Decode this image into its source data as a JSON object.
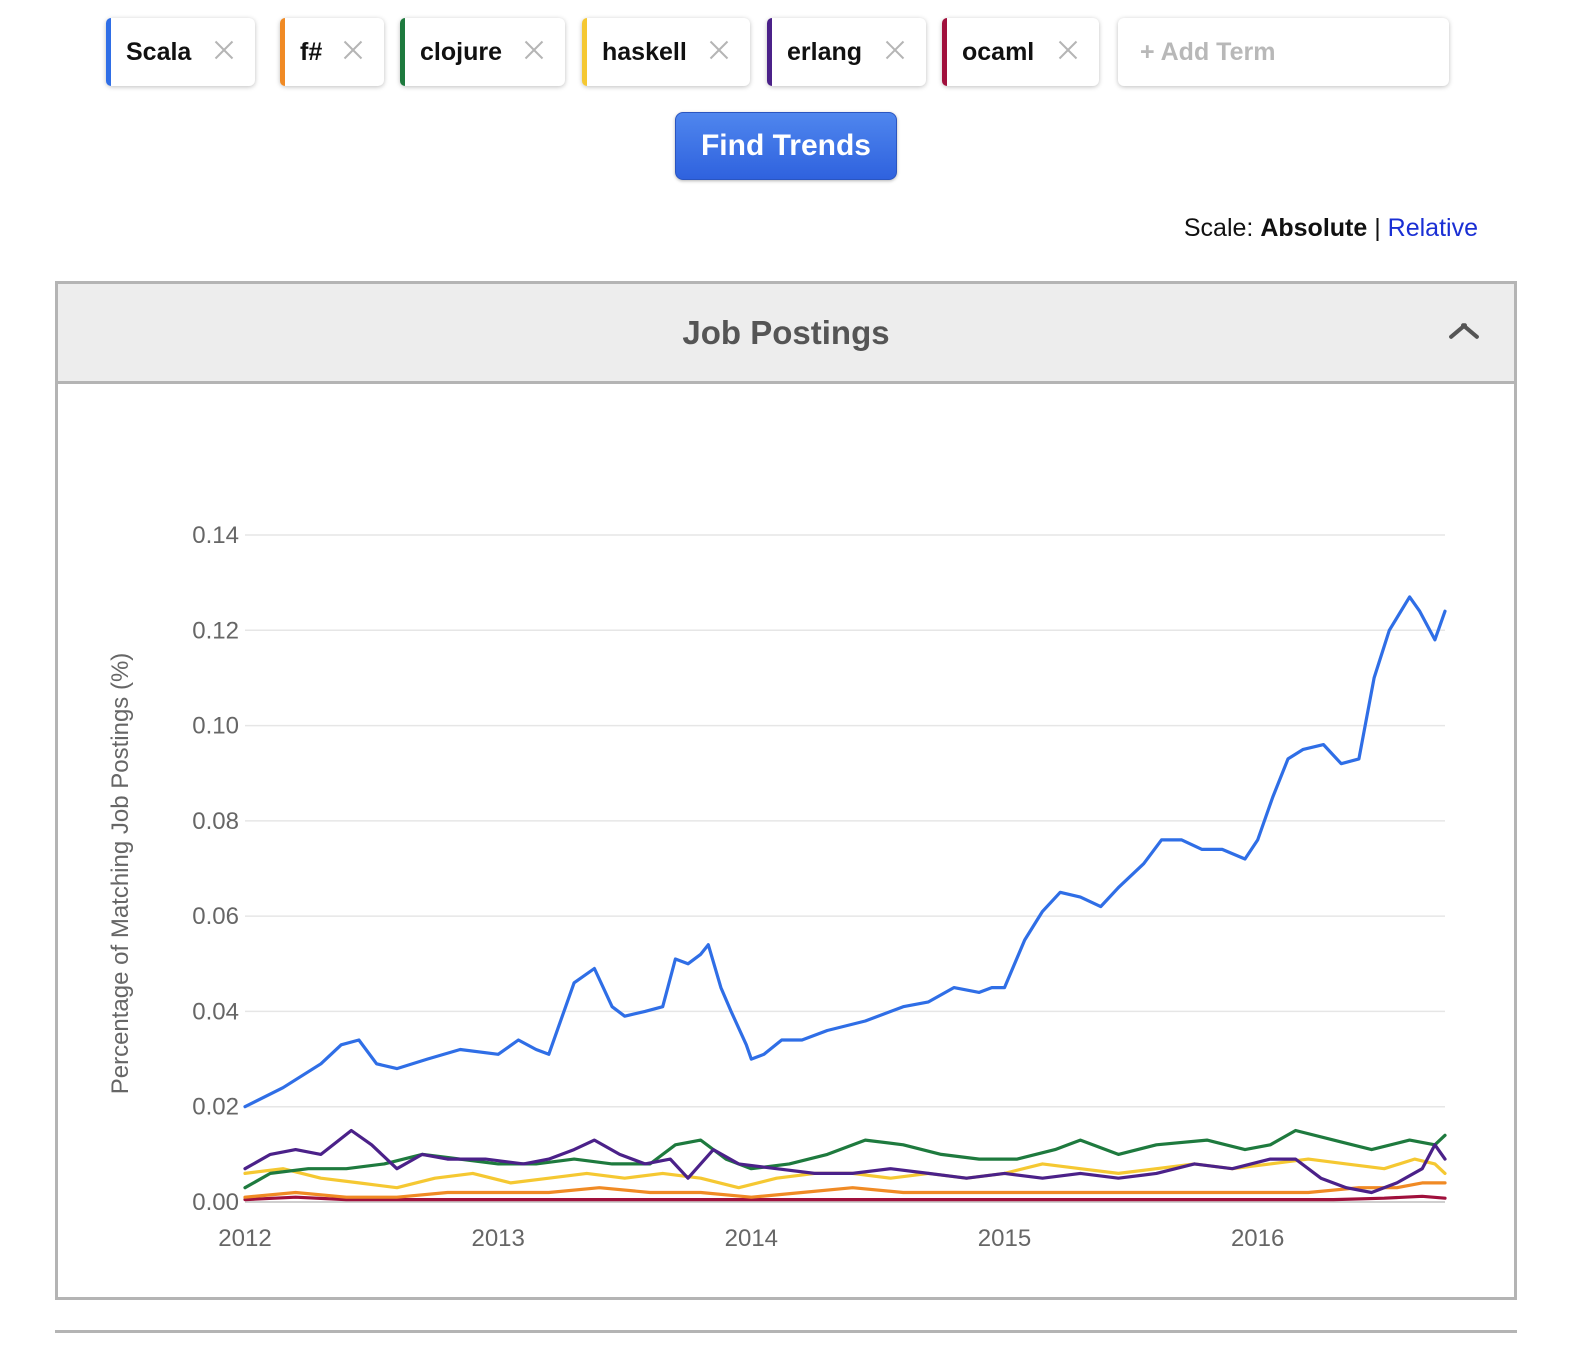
{
  "terms": [
    {
      "label": "Scala",
      "color": "#2f6ee6"
    },
    {
      "label": "f#",
      "color": "#f08a24"
    },
    {
      "label": "clojure",
      "color": "#1e7a3e"
    },
    {
      "label": "haskell",
      "color": "#f5c832"
    },
    {
      "label": "erlang",
      "color": "#4b2189"
    },
    {
      "label": "ocaml",
      "color": "#a0103c"
    }
  ],
  "add_term": {
    "placeholder": "+ Add Term"
  },
  "find_button": {
    "label": "Find Trends"
  },
  "scale": {
    "prefix": "Scale:",
    "absolute": "Absolute",
    "separator": "|",
    "relative": "Relative"
  },
  "panel": {
    "title": "Job Postings"
  },
  "chart_data": {
    "type": "line",
    "title": "",
    "xlabel": "",
    "ylabel": "Percentage of Matching Job Postings (%)",
    "x_ticks": [
      "2012",
      "2013",
      "2014",
      "2015",
      "2016"
    ],
    "y_ticks": [
      "0.00",
      "0.02",
      "0.04",
      "0.06",
      "0.08",
      "0.10",
      "0.12",
      "0.14"
    ],
    "xlim": [
      2012.0,
      2016.74
    ],
    "ylim": [
      0,
      0.14
    ],
    "grid": true,
    "series": [
      {
        "name": "Scala",
        "color": "#2f6ee6",
        "x": [
          2012.0,
          2012.15,
          2012.3,
          2012.38,
          2012.45,
          2012.52,
          2012.6,
          2012.72,
          2012.85,
          2013.0,
          2013.08,
          2013.15,
          2013.2,
          2013.24,
          2013.3,
          2013.38,
          2013.45,
          2013.5,
          2013.58,
          2013.65,
          2013.7,
          2013.75,
          2013.8,
          2013.83,
          2013.88,
          2013.92,
          2013.98,
          2014.0,
          2014.05,
          2014.12,
          2014.2,
          2014.3,
          2014.45,
          2014.6,
          2014.7,
          2014.8,
          2014.9,
          2014.95,
          2015.0,
          2015.08,
          2015.15,
          2015.22,
          2015.3,
          2015.38,
          2015.45,
          2015.55,
          2015.62,
          2015.7,
          2015.78,
          2015.86,
          2015.95,
          2016.0,
          2016.06,
          2016.12,
          2016.18,
          2016.26,
          2016.33,
          2016.4,
          2016.46,
          2016.52,
          2016.6,
          2016.64,
          2016.7,
          2016.74
        ],
        "y": [
          0.02,
          0.024,
          0.029,
          0.033,
          0.034,
          0.029,
          0.028,
          0.03,
          0.032,
          0.031,
          0.034,
          0.032,
          0.031,
          0.037,
          0.046,
          0.049,
          0.041,
          0.039,
          0.04,
          0.041,
          0.051,
          0.05,
          0.052,
          0.054,
          0.045,
          0.04,
          0.033,
          0.03,
          0.031,
          0.034,
          0.034,
          0.036,
          0.038,
          0.041,
          0.042,
          0.045,
          0.044,
          0.045,
          0.045,
          0.055,
          0.061,
          0.065,
          0.064,
          0.062,
          0.066,
          0.071,
          0.076,
          0.076,
          0.074,
          0.074,
          0.072,
          0.076,
          0.085,
          0.093,
          0.095,
          0.096,
          0.092,
          0.093,
          0.11,
          0.12,
          0.127,
          0.124,
          0.118,
          0.124
        ]
      },
      {
        "name": "f#",
        "color": "#f08a24",
        "x": [
          2012.0,
          2012.2,
          2012.4,
          2012.6,
          2012.8,
          2013.0,
          2013.2,
          2013.4,
          2013.6,
          2013.8,
          2014.0,
          2014.2,
          2014.4,
          2014.6,
          2014.8,
          2015.0,
          2015.2,
          2015.4,
          2015.6,
          2015.8,
          2016.0,
          2016.2,
          2016.4,
          2016.55,
          2016.65,
          2016.74
        ],
        "y": [
          0.001,
          0.002,
          0.001,
          0.001,
          0.002,
          0.002,
          0.002,
          0.003,
          0.002,
          0.002,
          0.001,
          0.002,
          0.003,
          0.002,
          0.002,
          0.002,
          0.002,
          0.002,
          0.002,
          0.002,
          0.002,
          0.002,
          0.003,
          0.003,
          0.004,
          0.004
        ]
      },
      {
        "name": "clojure",
        "color": "#1e7a3e",
        "x": [
          2012.0,
          2012.1,
          2012.25,
          2012.4,
          2012.55,
          2012.7,
          2012.85,
          2013.0,
          2013.15,
          2013.3,
          2013.45,
          2013.6,
          2013.7,
          2013.8,
          2013.9,
          2014.0,
          2014.15,
          2014.3,
          2014.45,
          2014.6,
          2014.75,
          2014.9,
          2015.05,
          2015.2,
          2015.3,
          2015.45,
          2015.6,
          2015.8,
          2015.95,
          2016.05,
          2016.15,
          2016.3,
          2016.45,
          2016.6,
          2016.7,
          2016.74
        ],
        "y": [
          0.003,
          0.006,
          0.007,
          0.007,
          0.008,
          0.01,
          0.009,
          0.008,
          0.008,
          0.009,
          0.008,
          0.008,
          0.012,
          0.013,
          0.009,
          0.007,
          0.008,
          0.01,
          0.013,
          0.012,
          0.01,
          0.009,
          0.009,
          0.011,
          0.013,
          0.01,
          0.012,
          0.013,
          0.011,
          0.012,
          0.015,
          0.013,
          0.011,
          0.013,
          0.012,
          0.014
        ]
      },
      {
        "name": "haskell",
        "color": "#f5c832",
        "x": [
          2012.0,
          2012.15,
          2012.3,
          2012.45,
          2012.6,
          2012.75,
          2012.9,
          2013.05,
          2013.2,
          2013.35,
          2013.5,
          2013.65,
          2013.8,
          2013.95,
          2014.1,
          2014.25,
          2014.4,
          2014.55,
          2014.7,
          2014.85,
          2015.0,
          2015.15,
          2015.3,
          2015.45,
          2015.6,
          2015.75,
          2015.9,
          2016.05,
          2016.2,
          2016.35,
          2016.5,
          2016.62,
          2016.7,
          2016.74
        ],
        "y": [
          0.006,
          0.007,
          0.005,
          0.004,
          0.003,
          0.005,
          0.006,
          0.004,
          0.005,
          0.006,
          0.005,
          0.006,
          0.005,
          0.003,
          0.005,
          0.006,
          0.006,
          0.005,
          0.006,
          0.005,
          0.006,
          0.008,
          0.007,
          0.006,
          0.007,
          0.008,
          0.007,
          0.008,
          0.009,
          0.008,
          0.007,
          0.009,
          0.008,
          0.006
        ]
      },
      {
        "name": "erlang",
        "color": "#4b2189",
        "x": [
          2012.0,
          2012.1,
          2012.2,
          2012.3,
          2012.42,
          2012.5,
          2012.6,
          2012.7,
          2012.8,
          2012.95,
          2013.1,
          2013.2,
          2013.3,
          2013.38,
          2013.48,
          2013.58,
          2013.68,
          2013.75,
          2013.85,
          2013.95,
          2014.1,
          2014.25,
          2014.4,
          2014.55,
          2014.7,
          2014.85,
          2015.0,
          2015.15,
          2015.3,
          2015.45,
          2015.6,
          2015.75,
          2015.9,
          2016.05,
          2016.15,
          2016.25,
          2016.35,
          2016.45,
          2016.55,
          2016.65,
          2016.7,
          2016.74
        ],
        "y": [
          0.007,
          0.01,
          0.011,
          0.01,
          0.015,
          0.012,
          0.007,
          0.01,
          0.009,
          0.009,
          0.008,
          0.009,
          0.011,
          0.013,
          0.01,
          0.008,
          0.009,
          0.005,
          0.011,
          0.008,
          0.007,
          0.006,
          0.006,
          0.007,
          0.006,
          0.005,
          0.006,
          0.005,
          0.006,
          0.005,
          0.006,
          0.008,
          0.007,
          0.009,
          0.009,
          0.005,
          0.003,
          0.002,
          0.004,
          0.007,
          0.012,
          0.009
        ]
      },
      {
        "name": "ocaml",
        "color": "#a0103c",
        "x": [
          2012.0,
          2012.2,
          2012.4,
          2012.6,
          2012.8,
          2013.0,
          2013.3,
          2013.6,
          2013.9,
          2014.2,
          2014.5,
          2014.8,
          2015.1,
          2015.4,
          2015.7,
          2016.0,
          2016.3,
          2016.5,
          2016.65,
          2016.74
        ],
        "y": [
          0.0005,
          0.001,
          0.0005,
          0.0005,
          0.0005,
          0.0005,
          0.0005,
          0.0005,
          0.0005,
          0.0005,
          0.0005,
          0.0005,
          0.0005,
          0.0005,
          0.0005,
          0.0005,
          0.0005,
          0.0008,
          0.0012,
          0.0008
        ]
      }
    ]
  }
}
